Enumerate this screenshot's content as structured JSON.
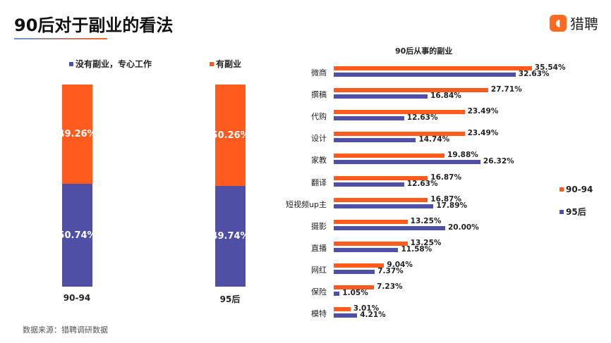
{
  "title": "90后对于副业的看法",
  "logo": {
    "text": "猎聘",
    "icon": "liepin-logo-icon"
  },
  "source": "数据来源：猎聘调研数据",
  "colors": {
    "orange": "#FF5B1E",
    "blue": "#4E4FA5"
  },
  "chart_data": [
    {
      "type": "bar",
      "stacked": true,
      "categories": [
        "90-94",
        "95后"
      ],
      "series": [
        {
          "name": "没有副业，专心工作",
          "values": [
            50.74,
            49.74
          ]
        },
        {
          "name": "有副业",
          "values": [
            49.26,
            50.26
          ]
        }
      ],
      "value_labels": [
        [
          "50.74%",
          "49.74%"
        ],
        [
          "49.26%",
          "50.26%"
        ]
      ],
      "legend": "top",
      "ylim": [
        0,
        100
      ]
    },
    {
      "type": "bar",
      "orientation": "horizontal",
      "title": "90后从事的副业",
      "categories": [
        "微商",
        "撰稿",
        "代购",
        "设计",
        "家教",
        "翻译",
        "短视频up主",
        "摄影",
        "直播",
        "网红",
        "保险",
        "模特"
      ],
      "series": [
        {
          "name": "90-94",
          "values": [
            35.54,
            27.71,
            23.49,
            23.49,
            19.88,
            16.87,
            16.87,
            13.25,
            13.25,
            9.04,
            7.23,
            3.01
          ]
        },
        {
          "name": "95后",
          "values": [
            32.63,
            16.84,
            12.63,
            14.74,
            26.32,
            12.63,
            17.89,
            20.0,
            11.58,
            7.37,
            1.05,
            4.21
          ]
        }
      ],
      "legend": "right"
    }
  ]
}
